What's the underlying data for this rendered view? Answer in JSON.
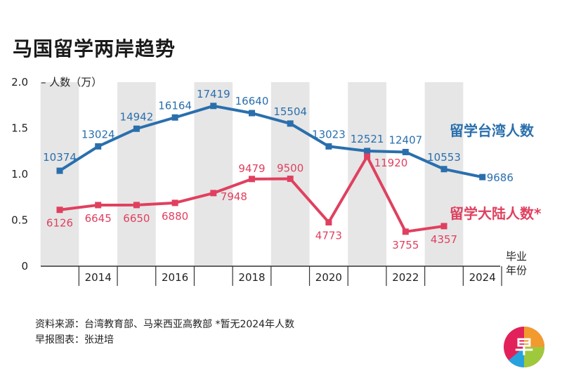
{
  "title": "马国留学两岸趋势",
  "source_line": "资料来源：台湾教育部、马来西亚高教部  *暂无2024年人数",
  "credit_line": "早报图表：张进培",
  "logo": {
    "icon": "zaobao-logo-icon",
    "text": "早"
  },
  "colors": {
    "taiwan": "#2a6fad",
    "mainland": "#e0405f",
    "band": "#e6e6e6"
  },
  "chart_data": {
    "type": "line",
    "ylabel": "人数（万）",
    "xlabel": "毕业年份",
    "ylim": [
      0,
      2.0
    ],
    "yticks": [
      {
        "v": 0,
        "label": "0"
      },
      {
        "v": 0.5,
        "label": "0.5"
      },
      {
        "v": 1.0,
        "label": "1.0"
      },
      {
        "v": 1.5,
        "label": "1.5"
      },
      {
        "v": 2.0,
        "label": "2.0"
      }
    ],
    "x": [
      2013,
      2014,
      2015,
      2016,
      2017,
      2018,
      2019,
      2020,
      2021,
      2022,
      2023,
      2024
    ],
    "x_tick_labels": [
      "2014",
      "2016",
      "2018",
      "2020",
      "2022",
      "2024"
    ],
    "grid": false,
    "series": [
      {
        "name": "留学台湾人数",
        "color": "#2a6fad",
        "values": [
          10374,
          13024,
          14942,
          16164,
          17419,
          16640,
          15504,
          13023,
          12521,
          12407,
          10553,
          9686
        ]
      },
      {
        "name": "留学大陆人数*",
        "color": "#e0405f",
        "values": [
          6126,
          6645,
          6650,
          6880,
          7948,
          9479,
          9500,
          4773,
          11920,
          3755,
          4357,
          null
        ]
      }
    ]
  }
}
